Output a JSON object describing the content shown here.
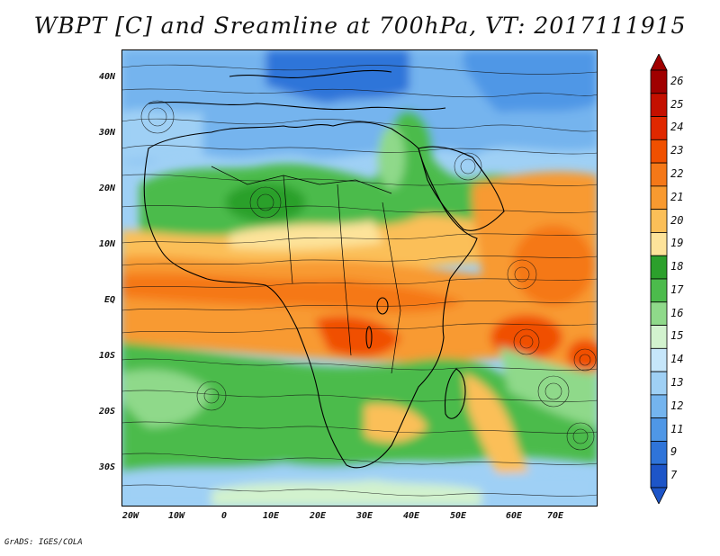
{
  "title": "WBPT [C] and Sreamline at 700hPa, VT: 2017111915",
  "footer": "GrADS: IGES/COLA",
  "lat_labels": [
    "40N",
    "30N",
    "20N",
    "10N",
    "EQ",
    "10S",
    "20S",
    "30S"
  ],
  "lon_labels": [
    "20W",
    "10W",
    "0",
    "10E",
    "20E",
    "30E",
    "40E",
    "50E",
    "60E",
    "70E"
  ],
  "colorbar": {
    "labels": [
      "26",
      "25",
      "24",
      "23",
      "22",
      "21",
      "20",
      "19",
      "18",
      "17",
      "16",
      "15",
      "14",
      "13",
      "12",
      "11",
      "9",
      "7"
    ],
    "colors": [
      "#a00000",
      "#c41000",
      "#e02800",
      "#f05000",
      "#f57818",
      "#f89a30",
      "#fbbf58",
      "#fde39a",
      "#2ca02c",
      "#4cbb4c",
      "#8fd98a",
      "#d2f2ce",
      "#c6e6fa",
      "#9fd0f5",
      "#74b4ee",
      "#4f97e6",
      "#2f74d9",
      "#1d55c8"
    ]
  }
}
